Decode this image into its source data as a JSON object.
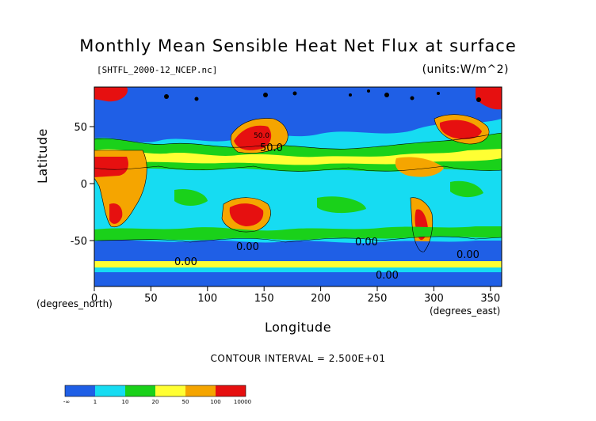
{
  "figure": {
    "title": "Monthly Mean Sensible Heat Net Flux at surface",
    "source_file": "[SHTFL_2000-12_NCEP.nc]",
    "units": "(units:W/m^2)",
    "x_axis": {
      "label": "Longitude",
      "units_label": "(degrees_east)",
      "ticks": [
        "0",
        "50",
        "100",
        "150",
        "200",
        "250",
        "300",
        "350"
      ]
    },
    "y_axis": {
      "label": "Latitude",
      "units_label": "(degrees_north)",
      "ticks": [
        "50",
        "0",
        "-50"
      ]
    },
    "contour_interval": "CONTOUR INTERVAL = 2.500E+01",
    "contour_labels": [
      "50.0",
      "50.0",
      "0.00",
      "0.00",
      "0.00",
      "0.00",
      "0.00"
    ]
  },
  "colorbar": {
    "labels": [
      "-∞",
      "1",
      "10",
      "20",
      "50",
      "100",
      "10000"
    ],
    "colors": [
      "#1f5fe6",
      "#16dcf2",
      "#1ad11a",
      "#ffff33",
      "#f5a500",
      "#e61010"
    ]
  }
}
